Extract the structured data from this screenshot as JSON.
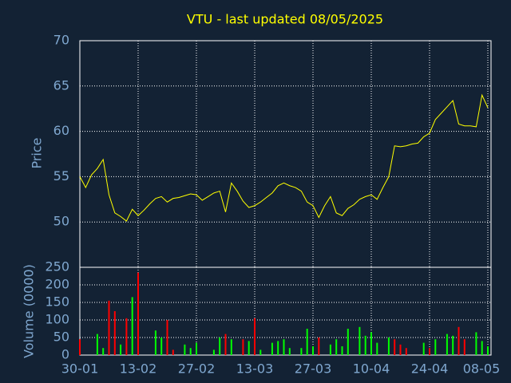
{
  "chart_data": [
    {
      "type": "line",
      "title": "VTU - last updated 08/05/2025",
      "y_label": "Price",
      "color": "#ffff00",
      "grid": true,
      "categories": [
        "30-01",
        null,
        null,
        null,
        null,
        null,
        null,
        null,
        null,
        null,
        "13-02",
        null,
        null,
        null,
        null,
        null,
        null,
        null,
        null,
        null,
        "27-02",
        null,
        null,
        null,
        null,
        null,
        null,
        null,
        null,
        null,
        "13-03",
        null,
        null,
        null,
        null,
        null,
        null,
        null,
        null,
        null,
        "27-03",
        null,
        null,
        null,
        null,
        null,
        null,
        null,
        null,
        null,
        "10-04",
        null,
        null,
        null,
        null,
        null,
        null,
        null,
        null,
        null,
        "24-04",
        null,
        null,
        null,
        null,
        null,
        null,
        null,
        null,
        null,
        "08-05"
      ],
      "values": [
        55,
        53.8,
        55.2,
        55.9,
        56.9,
        53,
        51,
        50.6,
        50.1,
        51.4,
        50.7,
        51.3,
        52,
        52.6,
        52.8,
        52.2,
        52.6,
        52.7,
        52.9,
        53.1,
        53,
        52.4,
        52.8,
        53.2,
        53.4,
        51.1,
        54.3,
        53.4,
        52.3,
        51.6,
        51.8,
        52.2,
        52.7,
        53.2,
        54,
        54.3,
        54,
        53.8,
        53.4,
        52.2,
        51.8,
        50.5,
        51.8,
        52.8,
        51,
        50.7,
        51.5,
        51.9,
        52.5,
        52.8,
        53,
        52.5,
        53.8,
        55,
        58.4,
        58.3,
        58.4,
        58.6,
        58.7,
        59.4,
        59.8,
        61.3,
        62,
        62.7,
        63.4,
        60.8,
        60.6,
        60.6,
        60.5,
        64,
        62.6
      ],
      "ylim": [
        45,
        70
      ],
      "yticks": [
        50,
        55,
        60,
        65,
        70
      ]
    },
    {
      "type": "bar",
      "y_label": "Volume (0000)",
      "grid": true,
      "values": [
        45,
        null,
        null,
        60,
        20,
        155,
        125,
        30,
        105,
        165,
        235,
        null,
        null,
        70,
        50,
        100,
        15,
        null,
        30,
        20,
        35,
        null,
        null,
        15,
        50,
        60,
        45,
        null,
        45,
        40,
        105,
        15,
        null,
        35,
        40,
        45,
        20,
        null,
        20,
        75,
        25,
        50,
        null,
        30,
        45,
        25,
        75,
        null,
        80,
        55,
        65,
        35,
        null,
        50,
        45,
        30,
        20,
        null,
        null,
        35,
        20,
        45,
        null,
        60,
        55,
        80,
        45,
        null,
        65,
        40,
        25
      ],
      "colors": [
        "#ff0000",
        null,
        null,
        "#00ff00",
        "#00ff00",
        "#ff0000",
        "#ff0000",
        "#00ff00",
        "#ff0000",
        "#00ff00",
        "#ff0000",
        null,
        null,
        "#00ff00",
        "#00ff00",
        "#ff0000",
        "#ff0000",
        null,
        "#00ff00",
        "#00ff00",
        "#00ff00",
        null,
        null,
        "#00ff00",
        "#00ff00",
        "#ff0000",
        "#00ff00",
        null,
        "#ff0000",
        "#00ff00",
        "#ff0000",
        "#00ff00",
        null,
        "#00ff00",
        "#00ff00",
        "#00ff00",
        "#00ff00",
        null,
        "#00ff00",
        "#00ff00",
        "#00ff00",
        "#ff0000",
        null,
        "#00ff00",
        "#00ff00",
        "#00ff00",
        "#00ff00",
        null,
        "#00ff00",
        "#00ff00",
        "#00ff00",
        "#00ff00",
        null,
        "#00ff00",
        "#ff0000",
        "#ff0000",
        "#ff0000",
        null,
        null,
        "#00ff00",
        "#ff0000",
        "#00ff00",
        null,
        "#00ff00",
        "#00ff00",
        "#ff0000",
        "#ff0000",
        null,
        "#00ff00",
        "#00ff00",
        "#00ff00"
      ],
      "ylim": [
        0,
        250
      ],
      "yticks": [
        0,
        50,
        100,
        150,
        200,
        250
      ]
    }
  ]
}
